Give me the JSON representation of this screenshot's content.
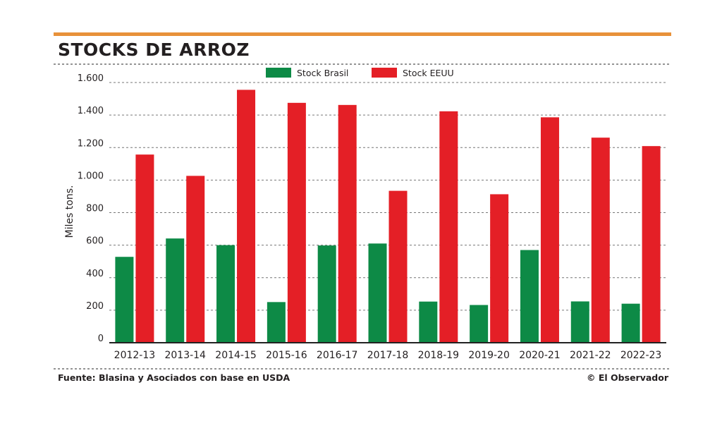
{
  "title": "STOCKS DE ARROZ",
  "source": "Fuente: Blasina y Asociados con base en USDA",
  "credit": "© El Observador",
  "colors": {
    "accent_bar": "#e8913a",
    "brasil": "#0d8a46",
    "eeuu": "#e41f26",
    "text": "#231f20",
    "grid": "#777777"
  },
  "chart_data": {
    "type": "bar",
    "title": "STOCKS DE ARROZ",
    "xlabel": "",
    "ylabel": "Miles tons.",
    "ylim": [
      0,
      1600
    ],
    "yticks": [
      0,
      200,
      400,
      600,
      800,
      1000,
      1200,
      1400,
      1600
    ],
    "ytick_labels": [
      "0",
      "200",
      "400",
      "600",
      "800",
      "1.000",
      "1.200",
      "1.400",
      "1.600"
    ],
    "legend_position": "top-center",
    "grid": true,
    "categories": [
      "2012-13",
      "2013-14",
      "2014-15",
      "2015-16",
      "2016-17",
      "2017-18",
      "2018-19",
      "2019-20",
      "2020-21",
      "2021-22",
      "2022-23"
    ],
    "series": [
      {
        "name": "Stock Brasil",
        "values": [
          528,
          641,
          600,
          250,
          598,
          610,
          253,
          232,
          570,
          254,
          240
        ]
      },
      {
        "name": "Stock EEUU",
        "values": [
          1157,
          1026,
          1555,
          1475,
          1462,
          934,
          1423,
          913,
          1386,
          1261,
          1209
        ]
      }
    ]
  }
}
